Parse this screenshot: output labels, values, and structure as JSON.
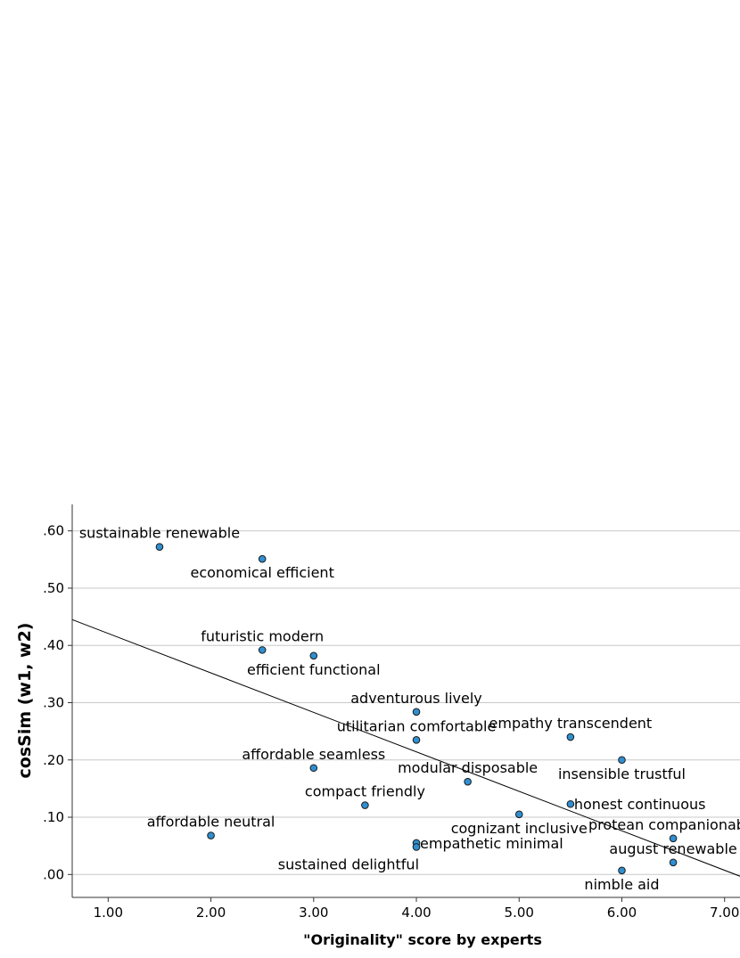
{
  "chart_data": {
    "type": "scatter",
    "title": "",
    "xlabel": "\"Originality\" score by experts",
    "ylabel": "cosSim (w1, w2)",
    "xlim": [
      0.65,
      7.15
    ],
    "ylim": [
      -0.04,
      0.64
    ],
    "x_ticks": [
      {
        "value": 1,
        "label": "1.00"
      },
      {
        "value": 2,
        "label": "2.00"
      },
      {
        "value": 3,
        "label": "3.00"
      },
      {
        "value": 4,
        "label": "4.00"
      },
      {
        "value": 5,
        "label": "5.00"
      },
      {
        "value": 6,
        "label": "6.00"
      },
      {
        "value": 7,
        "label": "7.00"
      }
    ],
    "y_ticks": [
      {
        "value": 0.0,
        "label": ".00"
      },
      {
        "value": 0.1,
        "label": ".10"
      },
      {
        "value": 0.2,
        "label": ".20"
      },
      {
        "value": 0.3,
        "label": ".30"
      },
      {
        "value": 0.4,
        "label": ".40"
      },
      {
        "value": 0.5,
        "label": ".50"
      },
      {
        "value": 0.6,
        "label": ".60"
      }
    ],
    "grid": {
      "horizontal": true,
      "vertical": false
    },
    "marker_color": "#2f8fd0",
    "marker_edge_color": "#1a1a1a",
    "fit_line_color": "#000000",
    "fit_line": {
      "x1": 0.65,
      "y1": 0.445,
      "x2": 7.15,
      "y2": -0.003
    },
    "points": [
      {
        "label": "sustainable renewable",
        "x": 1.5,
        "y": 0.572,
        "label_pos": "above"
      },
      {
        "label": "economical efficient",
        "x": 2.5,
        "y": 0.551,
        "label_pos": "below"
      },
      {
        "label": "futuristic modern",
        "x": 2.5,
        "y": 0.392,
        "label_pos": "above"
      },
      {
        "label": "efficient functional",
        "x": 3.0,
        "y": 0.382,
        "label_pos": "below"
      },
      {
        "label": "adventurous lively",
        "x": 4.0,
        "y": 0.284,
        "label_pos": "above"
      },
      {
        "label": "utilitarian comfortable",
        "x": 4.0,
        "y": 0.235,
        "label_pos": "above"
      },
      {
        "label": "empathy transcendent",
        "x": 5.5,
        "y": 0.24,
        "label_pos": "above"
      },
      {
        "label": "insensible trustful",
        "x": 6.0,
        "y": 0.2,
        "label_pos": "below"
      },
      {
        "label": "affordable seamless",
        "x": 3.0,
        "y": 0.186,
        "label_pos": "above"
      },
      {
        "label": "modular disposable",
        "x": 4.5,
        "y": 0.162,
        "label_pos": "above"
      },
      {
        "label": "compact friendly",
        "x": 3.5,
        "y": 0.121,
        "label_pos": "above"
      },
      {
        "label": "honest continuous",
        "x": 5.5,
        "y": 0.123,
        "label_pos": "right"
      },
      {
        "label": "cognizant inclusive",
        "x": 5.0,
        "y": 0.105,
        "label_pos": "below"
      },
      {
        "label": "affordable neutral",
        "x": 2.0,
        "y": 0.068,
        "label_pos": "above"
      },
      {
        "label": "protean companionable",
        "x": 6.5,
        "y": 0.063,
        "label_pos": "above"
      },
      {
        "label": "empathetic minimal",
        "x": 4.0,
        "y": 0.055,
        "label_pos": "right"
      },
      {
        "label": "sustained delightful",
        "x": 4.0,
        "y": 0.048,
        "label_pos": "below-left"
      },
      {
        "label": "august renewable",
        "x": 6.5,
        "y": 0.021,
        "label_pos": "above"
      },
      {
        "label": "nimble aid",
        "x": 6.0,
        "y": 0.007,
        "label_pos": "below"
      }
    ]
  }
}
